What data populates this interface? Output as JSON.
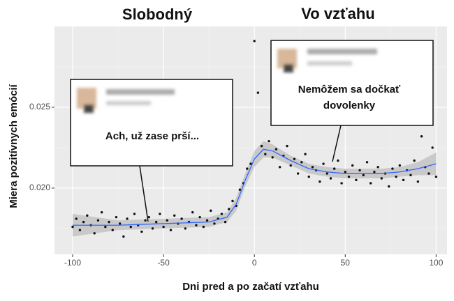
{
  "chart_data": {
    "type": "scatter-smooth",
    "titles": [
      "Slobodný",
      "Vo vzťahu"
    ],
    "xlabel": "Dni pred a po začatí vzťahu",
    "ylabel": "Miera pozitívnych emócií",
    "annotations": [
      "Ach, už zase prší...",
      "Nemôžem sa dočkať",
      "dovolenky"
    ],
    "xlim": [
      -110,
      106
    ],
    "ylim": [
      0.0159,
      0.03
    ],
    "xticks": [
      -100,
      -50,
      0,
      50,
      100
    ],
    "yticks": [
      {
        "value": 0.02,
        "label": "0.020"
      },
      {
        "value": 0.025,
        "label": "0.025"
      }
    ],
    "minor_xticks": [
      -75,
      -25,
      25,
      75
    ],
    "minor_yticks": [
      0.0175,
      0.0225,
      0.0275
    ],
    "grid": true,
    "point_color": "#111111",
    "line_color": "#3366ff",
    "band_color": "#b3b3b3",
    "points": {
      "x": [
        -100,
        -98,
        -96,
        -94,
        -92,
        -90,
        -88,
        -86,
        -84,
        -82,
        -80,
        -78,
        -76,
        -74,
        -72,
        -70,
        -68,
        -66,
        -64,
        -62,
        -60,
        -58,
        -56,
        -54,
        -52,
        -50,
        -48,
        -46,
        -44,
        -42,
        -40,
        -38,
        -36,
        -34,
        -32,
        -30,
        -28,
        -26,
        -24,
        -22,
        -20,
        -18,
        -16,
        -14,
        -12,
        -10,
        -8,
        -6,
        -4,
        -2,
        0,
        2,
        4,
        6,
        8,
        10,
        12,
        14,
        16,
        18,
        20,
        22,
        24,
        26,
        28,
        30,
        32,
        34,
        36,
        38,
        40,
        42,
        44,
        46,
        48,
        50,
        52,
        54,
        56,
        58,
        60,
        62,
        64,
        66,
        68,
        70,
        72,
        74,
        76,
        78,
        80,
        82,
        84,
        86,
        88,
        90,
        92,
        94,
        96,
        98,
        100
      ],
      "values": [
        0.0176,
        0.0181,
        0.0174,
        0.0179,
        0.0183,
        0.0177,
        0.0172,
        0.018,
        0.0185,
        0.0176,
        0.0179,
        0.0174,
        0.0182,
        0.0178,
        0.017,
        0.0181,
        0.0176,
        0.0184,
        0.0177,
        0.0173,
        0.018,
        0.0182,
        0.0175,
        0.0179,
        0.0184,
        0.0176,
        0.018,
        0.0174,
        0.0183,
        0.0178,
        0.0181,
        0.0175,
        0.0179,
        0.0185,
        0.0177,
        0.0182,
        0.0176,
        0.018,
        0.0186,
        0.0178,
        0.0181,
        0.0184,
        0.0179,
        0.0187,
        0.0192,
        0.0189,
        0.0199,
        0.0203,
        0.0212,
        0.0215,
        0.0291,
        0.0259,
        0.0226,
        0.0221,
        0.0229,
        0.0219,
        0.0224,
        0.0213,
        0.022,
        0.0226,
        0.0214,
        0.0218,
        0.0209,
        0.0216,
        0.0221,
        0.0207,
        0.0213,
        0.0211,
        0.0204,
        0.0215,
        0.0209,
        0.0206,
        0.0212,
        0.0217,
        0.0203,
        0.021,
        0.0207,
        0.0214,
        0.0205,
        0.0211,
        0.0208,
        0.0216,
        0.0203,
        0.021,
        0.0213,
        0.0206,
        0.0209,
        0.0201,
        0.0212,
        0.0207,
        0.0214,
        0.0205,
        0.0211,
        0.0208,
        0.0217,
        0.0204,
        0.0232,
        0.0213,
        0.0209,
        0.0225,
        0.0207
      ]
    },
    "smooth": {
      "x": [
        -100,
        -75,
        -50,
        -25,
        -15,
        -10,
        -5,
        0,
        5,
        10,
        20,
        30,
        40,
        50,
        60,
        70,
        80,
        90,
        100
      ],
      "values": [
        0.0177,
        0.0177,
        0.0178,
        0.0179,
        0.0182,
        0.019,
        0.0205,
        0.0218,
        0.0224,
        0.0223,
        0.0217,
        0.0212,
        0.021,
        0.0209,
        0.0209,
        0.0209,
        0.021,
        0.0212,
        0.0215
      ],
      "lower": [
        0.017,
        0.0174,
        0.0175,
        0.0176,
        0.0179,
        0.0186,
        0.0201,
        0.0213,
        0.0219,
        0.0219,
        0.0214,
        0.0209,
        0.0207,
        0.0206,
        0.0206,
        0.0206,
        0.0207,
        0.0208,
        0.0208
      ],
      "upper": [
        0.0184,
        0.018,
        0.0181,
        0.0182,
        0.0185,
        0.0194,
        0.0209,
        0.0223,
        0.0229,
        0.0227,
        0.022,
        0.0215,
        0.0213,
        0.0212,
        0.0212,
        0.0212,
        0.0213,
        0.0216,
        0.0222
      ]
    }
  }
}
